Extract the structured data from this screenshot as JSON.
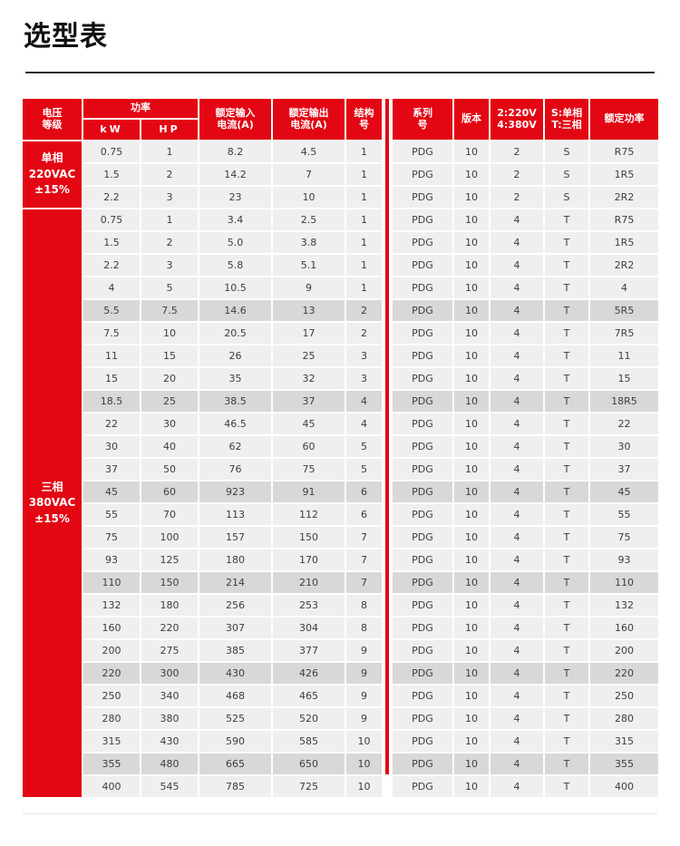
{
  "page": {
    "title": "选型表"
  },
  "colors": {
    "accent_red": "#e30613",
    "cell_bg": "#efefef",
    "cell_bg_highlight": "#d8d8d8",
    "cell_text": "#3d3d3d",
    "rule": "#2b2b2b"
  },
  "table": {
    "headers": {
      "voltage_class": "电压\n等级",
      "power_group": "功率",
      "kw": "kW",
      "hp": "HP",
      "input_current": "额定输入\n电流(A)",
      "output_current": "额定输出\n电流(A)",
      "frame": "结构\n号",
      "series": "系列\n号",
      "version": "版本",
      "voltage_code": "2:220V\n4:380V",
      "phase_code": "S:单相\nT:三相",
      "rated_power": "额定功率"
    },
    "groups": [
      {
        "label": "单相\n220VAC\n±15%",
        "rows": [
          {
            "kw": "0.75",
            "hp": "1",
            "input_a": "8.2",
            "output_a": "4.5",
            "frame": "1",
            "series": "PDG",
            "version": "10",
            "voltage_code": "2",
            "phase_code": "S",
            "power_code": "R75",
            "highlight": false
          },
          {
            "kw": "1.5",
            "hp": "2",
            "input_a": "14.2",
            "output_a": "7",
            "frame": "1",
            "series": "PDG",
            "version": "10",
            "voltage_code": "2",
            "phase_code": "S",
            "power_code": "1R5",
            "highlight": false
          },
          {
            "kw": "2.2",
            "hp": "3",
            "input_a": "23",
            "output_a": "10",
            "frame": "1",
            "series": "PDG",
            "version": "10",
            "voltage_code": "2",
            "phase_code": "S",
            "power_code": "2R2",
            "highlight": false
          }
        ]
      },
      {
        "label": "三相\n380VAC\n±15%",
        "rows": [
          {
            "kw": "0.75",
            "hp": "1",
            "input_a": "3.4",
            "output_a": "2.5",
            "frame": "1",
            "series": "PDG",
            "version": "10",
            "voltage_code": "4",
            "phase_code": "T",
            "power_code": "R75",
            "highlight": false
          },
          {
            "kw": "1.5",
            "hp": "2",
            "input_a": "5.0",
            "output_a": "3.8",
            "frame": "1",
            "series": "PDG",
            "version": "10",
            "voltage_code": "4",
            "phase_code": "T",
            "power_code": "1R5",
            "highlight": false
          },
          {
            "kw": "2.2",
            "hp": "3",
            "input_a": "5.8",
            "output_a": "5.1",
            "frame": "1",
            "series": "PDG",
            "version": "10",
            "voltage_code": "4",
            "phase_code": "T",
            "power_code": "2R2",
            "highlight": false
          },
          {
            "kw": "4",
            "hp": "5",
            "input_a": "10.5",
            "output_a": "9",
            "frame": "1",
            "series": "PDG",
            "version": "10",
            "voltage_code": "4",
            "phase_code": "T",
            "power_code": "4",
            "highlight": false
          },
          {
            "kw": "5.5",
            "hp": "7.5",
            "input_a": "14.6",
            "output_a": "13",
            "frame": "2",
            "series": "PDG",
            "version": "10",
            "voltage_code": "4",
            "phase_code": "T",
            "power_code": "5R5",
            "highlight": true
          },
          {
            "kw": "7.5",
            "hp": "10",
            "input_a": "20.5",
            "output_a": "17",
            "frame": "2",
            "series": "PDG",
            "version": "10",
            "voltage_code": "4",
            "phase_code": "T",
            "power_code": "7R5",
            "highlight": false
          },
          {
            "kw": "11",
            "hp": "15",
            "input_a": "26",
            "output_a": "25",
            "frame": "3",
            "series": "PDG",
            "version": "10",
            "voltage_code": "4",
            "phase_code": "T",
            "power_code": "11",
            "highlight": false
          },
          {
            "kw": "15",
            "hp": "20",
            "input_a": "35",
            "output_a": "32",
            "frame": "3",
            "series": "PDG",
            "version": "10",
            "voltage_code": "4",
            "phase_code": "T",
            "power_code": "15",
            "highlight": false
          },
          {
            "kw": "18.5",
            "hp": "25",
            "input_a": "38.5",
            "output_a": "37",
            "frame": "4",
            "series": "PDG",
            "version": "10",
            "voltage_code": "4",
            "phase_code": "T",
            "power_code": "18R5",
            "highlight": true
          },
          {
            "kw": "22",
            "hp": "30",
            "input_a": "46.5",
            "output_a": "45",
            "frame": "4",
            "series": "PDG",
            "version": "10",
            "voltage_code": "4",
            "phase_code": "T",
            "power_code": "22",
            "highlight": false
          },
          {
            "kw": "30",
            "hp": "40",
            "input_a": "62",
            "output_a": "60",
            "frame": "5",
            "series": "PDG",
            "version": "10",
            "voltage_code": "4",
            "phase_code": "T",
            "power_code": "30",
            "highlight": false
          },
          {
            "kw": "37",
            "hp": "50",
            "input_a": "76",
            "output_a": "75",
            "frame": "5",
            "series": "PDG",
            "version": "10",
            "voltage_code": "4",
            "phase_code": "T",
            "power_code": "37",
            "highlight": false
          },
          {
            "kw": "45",
            "hp": "60",
            "input_a": "923",
            "output_a": "91",
            "frame": "6",
            "series": "PDG",
            "version": "10",
            "voltage_code": "4",
            "phase_code": "T",
            "power_code": "45",
            "highlight": true
          },
          {
            "kw": "55",
            "hp": "70",
            "input_a": "113",
            "output_a": "112",
            "frame": "6",
            "series": "PDG",
            "version": "10",
            "voltage_code": "4",
            "phase_code": "T",
            "power_code": "55",
            "highlight": false
          },
          {
            "kw": "75",
            "hp": "100",
            "input_a": "157",
            "output_a": "150",
            "frame": "7",
            "series": "PDG",
            "version": "10",
            "voltage_code": "4",
            "phase_code": "T",
            "power_code": "75",
            "highlight": false
          },
          {
            "kw": "93",
            "hp": "125",
            "input_a": "180",
            "output_a": "170",
            "frame": "7",
            "series": "PDG",
            "version": "10",
            "voltage_code": "4",
            "phase_code": "T",
            "power_code": "93",
            "highlight": false
          },
          {
            "kw": "110",
            "hp": "150",
            "input_a": "214",
            "output_a": "210",
            "frame": "7",
            "series": "PDG",
            "version": "10",
            "voltage_code": "4",
            "phase_code": "T",
            "power_code": "110",
            "highlight": true
          },
          {
            "kw": "132",
            "hp": "180",
            "input_a": "256",
            "output_a": "253",
            "frame": "8",
            "series": "PDG",
            "version": "10",
            "voltage_code": "4",
            "phase_code": "T",
            "power_code": "132",
            "highlight": false
          },
          {
            "kw": "160",
            "hp": "220",
            "input_a": "307",
            "output_a": "304",
            "frame": "8",
            "series": "PDG",
            "version": "10",
            "voltage_code": "4",
            "phase_code": "T",
            "power_code": "160",
            "highlight": false
          },
          {
            "kw": "200",
            "hp": "275",
            "input_a": "385",
            "output_a": "377",
            "frame": "9",
            "series": "PDG",
            "version": "10",
            "voltage_code": "4",
            "phase_code": "T",
            "power_code": "200",
            "highlight": false
          },
          {
            "kw": "220",
            "hp": "300",
            "input_a": "430",
            "output_a": "426",
            "frame": "9",
            "series": "PDG",
            "version": "10",
            "voltage_code": "4",
            "phase_code": "T",
            "power_code": "220",
            "highlight": true
          },
          {
            "kw": "250",
            "hp": "340",
            "input_a": "468",
            "output_a": "465",
            "frame": "9",
            "series": "PDG",
            "version": "10",
            "voltage_code": "4",
            "phase_code": "T",
            "power_code": "250",
            "highlight": false
          },
          {
            "kw": "280",
            "hp": "380",
            "input_a": "525",
            "output_a": "520",
            "frame": "9",
            "series": "PDG",
            "version": "10",
            "voltage_code": "4",
            "phase_code": "T",
            "power_code": "280",
            "highlight": false
          },
          {
            "kw": "315",
            "hp": "430",
            "input_a": "590",
            "output_a": "585",
            "frame": "10",
            "series": "PDG",
            "version": "10",
            "voltage_code": "4",
            "phase_code": "T",
            "power_code": "315",
            "highlight": false
          },
          {
            "kw": "355",
            "hp": "480",
            "input_a": "665",
            "output_a": "650",
            "frame": "10",
            "series": "PDG",
            "version": "10",
            "voltage_code": "4",
            "phase_code": "T",
            "power_code": "355",
            "highlight": true
          },
          {
            "kw": "400",
            "hp": "545",
            "input_a": "785",
            "output_a": "725",
            "frame": "10",
            "series": "PDG",
            "version": "10",
            "voltage_code": "4",
            "phase_code": "T",
            "power_code": "400",
            "highlight": false
          }
        ]
      }
    ]
  }
}
